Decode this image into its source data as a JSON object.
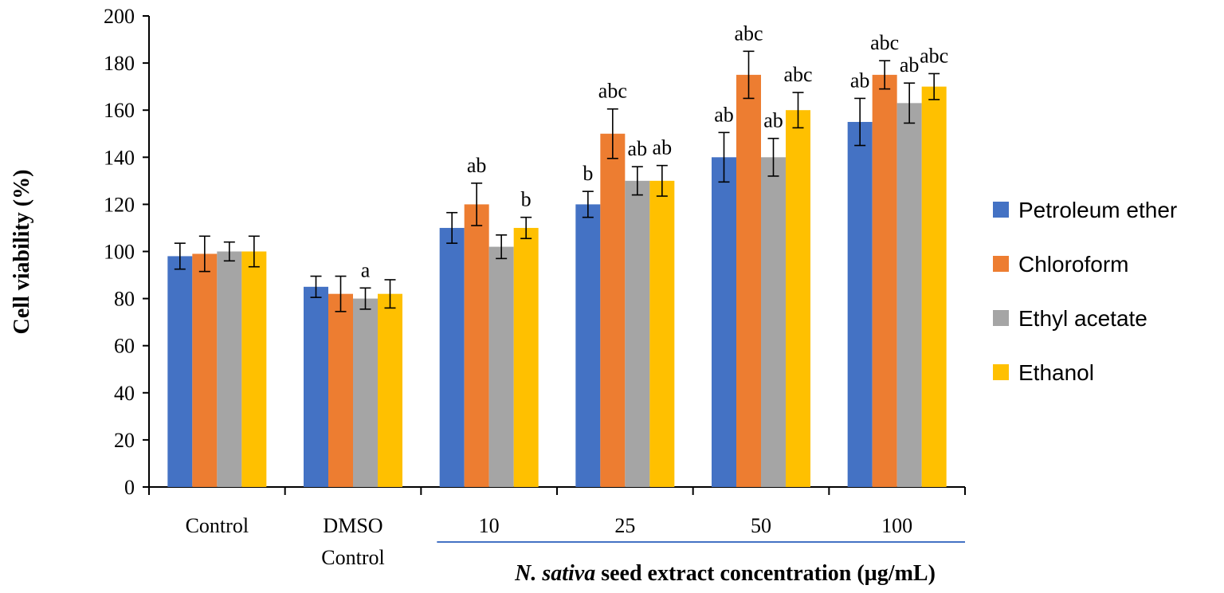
{
  "chart_data": {
    "type": "bar",
    "categories": [
      [
        "Control"
      ],
      [
        "DMSO",
        "Control"
      ],
      [
        "10"
      ],
      [
        "25"
      ],
      [
        "50"
      ],
      [
        "100"
      ]
    ],
    "series": [
      {
        "name": "Petroleum ether",
        "color": "#4472C4",
        "values": [
          98,
          85,
          110,
          120,
          140,
          155
        ],
        "errors": [
          5.5,
          4.5,
          6.5,
          5.5,
          10.5,
          10
        ],
        "labels": [
          "",
          "",
          "",
          "b",
          "ab",
          "ab"
        ]
      },
      {
        "name": "Chloroform",
        "color": "#ED7D31",
        "values": [
          99,
          82,
          120,
          150,
          175,
          175
        ],
        "errors": [
          7.5,
          7.5,
          9,
          10.5,
          10,
          6
        ],
        "labels": [
          "",
          "",
          "ab",
          "abc",
          "abc",
          "abc"
        ]
      },
      {
        "name": "Ethyl acetate",
        "color": "#A5A5A5",
        "values": [
          100,
          80,
          102,
          130,
          140,
          163
        ],
        "errors": [
          4,
          4.5,
          5,
          6,
          8,
          8.5
        ],
        "labels": [
          "",
          "a",
          "",
          "ab",
          "ab",
          "ab"
        ]
      },
      {
        "name": "Ethanol",
        "color": "#FFC000",
        "values": [
          100,
          82,
          110,
          130,
          160,
          170
        ],
        "errors": [
          6.5,
          6,
          4.5,
          6.5,
          7.5,
          5.5
        ],
        "labels": [
          "",
          "",
          "b",
          "ab",
          "abc",
          "abc"
        ]
      }
    ],
    "ylabel": "Cell viability (%)",
    "xlabel_italic": "N. sativa",
    "xlabel_rest": " seed extract concentration (µg/mL)",
    "ylim": [
      0,
      200
    ],
    "yticks": [
      0,
      20,
      40,
      60,
      80,
      100,
      120,
      140,
      160,
      180,
      200
    ],
    "grid": false,
    "legend_position": "right",
    "bracket_color": "#4472C4",
    "bracket_from_category": 2
  }
}
